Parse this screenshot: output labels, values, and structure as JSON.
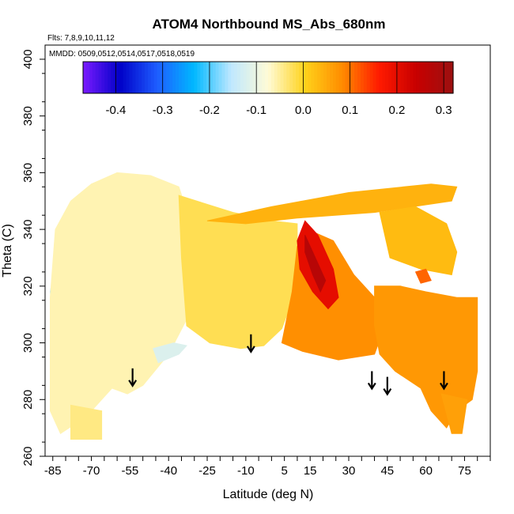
{
  "chart_data": {
    "type": "heatmap",
    "title": "ATOM4 Northbound MS_Abs_680nm",
    "flights_note": "Flts: 7,8,9,10,11,12",
    "dates_note": "MMDD: 0509,0512,0514,0517,0518,0519",
    "xlabel": "Latitude (deg N)",
    "ylabel": "Theta (C)",
    "xlim": [
      -88,
      85
    ],
    "ylim": [
      260,
      405
    ],
    "x_ticks": [
      "-85",
      "-70",
      "-55",
      "-40",
      "-25",
      "-10",
      "5",
      "15",
      "30",
      "45",
      "60",
      "75"
    ],
    "x_tick_values": [
      -85,
      -70,
      -55,
      -40,
      -25,
      -10,
      5,
      15,
      30,
      45,
      60,
      75
    ],
    "y_ticks": [
      "260",
      "280",
      "300",
      "320",
      "340",
      "360",
      "380",
      "400"
    ],
    "y_tick_values": [
      260,
      280,
      300,
      320,
      340,
      360,
      380,
      400
    ],
    "colorbar": {
      "ticks": [
        "-0.4",
        "-0.3",
        "-0.2",
        "-0.1",
        "0.0",
        "0.1",
        "0.2",
        "0.3"
      ],
      "tick_values": [
        -0.4,
        -0.3,
        -0.2,
        -0.1,
        0.0,
        0.1,
        0.2,
        0.3
      ],
      "range": [
        -0.47,
        0.32
      ],
      "colors": [
        "#7a1bff",
        "#0000c8",
        "#1e5dff",
        "#00b8ff",
        "#bfe8ff",
        "#fffbd6",
        "#ffd21a",
        "#ff8c00",
        "#ff1a00",
        "#c80000",
        "#9b1010"
      ]
    },
    "arrows_lat": [
      -54,
      -8,
      39,
      45,
      67
    ],
    "regions": [
      {
        "name": "southern-cool",
        "value": -0.16,
        "points": [
          [
            -86,
            318
          ],
          [
            -83,
            332
          ],
          [
            -78,
            342
          ],
          [
            -70,
            348
          ],
          [
            -58,
            352
          ],
          [
            -50,
            349
          ],
          [
            -43,
            336
          ],
          [
            -41,
            318
          ],
          [
            -44,
            304
          ],
          [
            -50,
            298
          ],
          [
            -62,
            298
          ],
          [
            -76,
            300
          ],
          [
            -84,
            306
          ]
        ]
      },
      {
        "name": "southern-outer-light",
        "value": -0.06,
        "points": [
          [
            -86,
            316
          ],
          [
            -84,
            340
          ],
          [
            -78,
            350
          ],
          [
            -70,
            356
          ],
          [
            -60,
            360
          ],
          [
            -47,
            359
          ],
          [
            -36,
            355
          ],
          [
            -30,
            338
          ],
          [
            -32,
            310
          ],
          [
            -40,
            296
          ],
          [
            -50,
            285
          ],
          [
            -56,
            282
          ],
          [
            -62,
            284
          ],
          [
            -72,
            274
          ],
          [
            -82,
            268
          ],
          [
            -86,
            276
          ]
        ]
      },
      {
        "name": "bottom-strip",
        "value": -0.04,
        "points": [
          [
            -78,
            278
          ],
          [
            -66,
            276
          ],
          [
            -66,
            266
          ],
          [
            -78,
            266
          ]
        ]
      },
      {
        "name": "south-lower-blue",
        "value": -0.12,
        "points": [
          [
            -44,
            293
          ],
          [
            -36,
            296
          ],
          [
            -33,
            299
          ],
          [
            -38,
            300
          ],
          [
            -46,
            298
          ]
        ]
      },
      {
        "name": "central-neutral",
        "value": -0.02,
        "points": [
          [
            -36,
            352
          ],
          [
            -15,
            346
          ],
          [
            0,
            343
          ],
          [
            10,
            342
          ],
          [
            10,
            320
          ],
          [
            4,
            305
          ],
          [
            -3,
            299
          ],
          [
            -12,
            298
          ],
          [
            -24,
            300
          ],
          [
            -33,
            306
          ],
          [
            -35,
            330
          ]
        ]
      },
      {
        "name": "top-warm-band",
        "value": 0.04,
        "points": [
          [
            -25,
            343
          ],
          [
            0,
            348
          ],
          [
            30,
            353
          ],
          [
            62,
            356
          ],
          [
            72,
            355
          ],
          [
            70,
            350
          ],
          [
            40,
            346
          ],
          [
            10,
            344
          ],
          [
            -10,
            342
          ]
        ]
      },
      {
        "name": "central-warm",
        "value": 0.08,
        "points": [
          [
            4,
            300
          ],
          [
            8,
            318
          ],
          [
            10,
            334
          ],
          [
            14,
            340
          ],
          [
            24,
            336
          ],
          [
            32,
            324
          ],
          [
            40,
            316
          ],
          [
            44,
            306
          ],
          [
            40,
            296
          ],
          [
            26,
            294
          ],
          [
            12,
            297
          ]
        ]
      },
      {
        "name": "red-core",
        "value": 0.2,
        "points": [
          [
            10,
            336
          ],
          [
            13,
            343
          ],
          [
            18,
            338
          ],
          [
            24,
            326
          ],
          [
            26,
            316
          ],
          [
            22,
            312
          ],
          [
            16,
            318
          ],
          [
            11,
            326
          ]
        ]
      },
      {
        "name": "red-inner",
        "value": 0.27,
        "points": [
          [
            13,
            338
          ],
          [
            16,
            332
          ],
          [
            21,
            322
          ],
          [
            19,
            318
          ],
          [
            16,
            324
          ],
          [
            13,
            332
          ]
        ]
      },
      {
        "name": "northern-warm",
        "value": 0.07,
        "points": [
          [
            40,
            320
          ],
          [
            50,
            320
          ],
          [
            60,
            318
          ],
          [
            72,
            316
          ],
          [
            80,
            316
          ],
          [
            80,
            290
          ],
          [
            78,
            280
          ],
          [
            72,
            276
          ],
          [
            68,
            270
          ],
          [
            62,
            276
          ],
          [
            58,
            284
          ],
          [
            48,
            290
          ],
          [
            42,
            296
          ],
          [
            40,
            306
          ]
        ]
      },
      {
        "name": "northern-light",
        "value": 0.03,
        "points": [
          [
            42,
            346
          ],
          [
            56,
            348
          ],
          [
            68,
            342
          ],
          [
            72,
            332
          ],
          [
            70,
            324
          ],
          [
            58,
            326
          ],
          [
            46,
            330
          ]
        ]
      },
      {
        "name": "north-tip",
        "value": 0.06,
        "points": [
          [
            66,
            282
          ],
          [
            70,
            268
          ],
          [
            74,
            268
          ],
          [
            76,
            280
          ]
        ]
      },
      {
        "name": "orange-patch",
        "value": 0.11,
        "points": [
          [
            56,
            325
          ],
          [
            60,
            326
          ],
          [
            62,
            322
          ],
          [
            58,
            321
          ]
        ]
      }
    ]
  }
}
